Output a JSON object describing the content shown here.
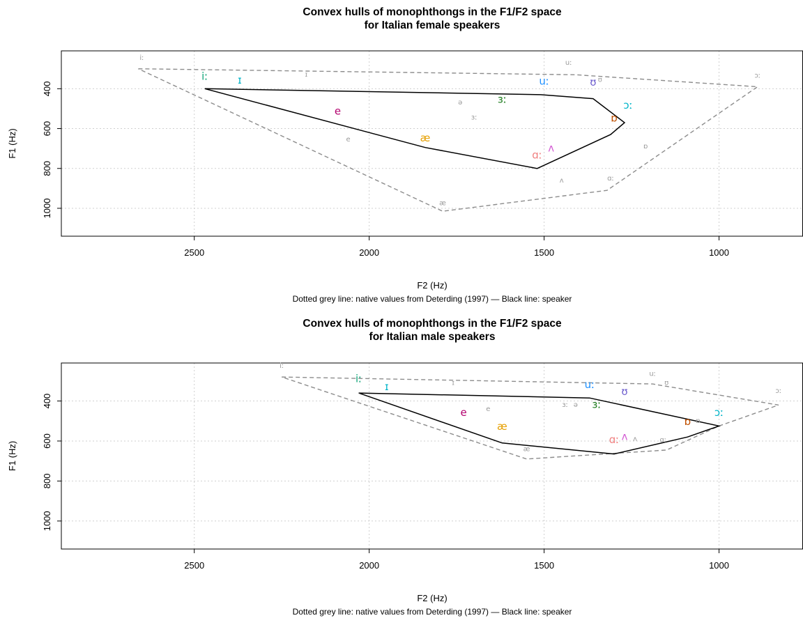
{
  "chart_data": [
    {
      "type": "scatter",
      "title": [
        "Convex hulls of monophthongs in the F1/F2 space",
        "for Italian female speakers"
      ],
      "xlabel": "F2 (Hz)",
      "ylabel": "F1 (Hz)",
      "caption": "Dotted grey line: native values from Deterding (1997) — Black line: speaker",
      "xlim": [
        2880,
        760
      ],
      "ylim": [
        1140,
        210
      ],
      "xticks": [
        2500,
        2000,
        1500,
        1000
      ],
      "yticks": [
        400,
        600,
        800,
        1000
      ],
      "grid": true,
      "series": [
        {
          "points": [
            {
              "label": "iː",
              "x": 2470,
              "y": 355,
              "color": "#11a579"
            },
            {
              "label": "ɪ",
              "x": 2370,
              "y": 375,
              "color": "#00b4c8"
            },
            {
              "label": "e",
              "x": 2090,
              "y": 530,
              "color": "#b3006e"
            },
            {
              "label": "æ",
              "x": 1840,
              "y": 665,
              "color": "#e69f00"
            },
            {
              "label": "ɑː",
              "x": 1520,
              "y": 750,
              "color": "#f08080"
            },
            {
              "label": "ʌ",
              "x": 1480,
              "y": 715,
              "color": "#d45fd4"
            },
            {
              "label": "ɜː",
              "x": 1620,
              "y": 470,
              "color": "#1b7a1b"
            },
            {
              "label": "uː",
              "x": 1500,
              "y": 380,
              "color": "#1e90ff"
            },
            {
              "label": "ʊ",
              "x": 1360,
              "y": 385,
              "color": "#6a5acd"
            },
            {
              "label": "ɔː",
              "x": 1260,
              "y": 500,
              "color": "#00b4c8"
            },
            {
              "label": "ɒ",
              "x": 1300,
              "y": 565,
              "color": "#c05000"
            }
          ],
          "hull": [
            [
              2470,
              400
            ],
            [
              1510,
              430
            ],
            [
              1360,
              450
            ],
            [
              1270,
              570
            ],
            [
              1310,
              630
            ],
            [
              1520,
              800
            ],
            [
              1840,
              695
            ],
            [
              2470,
              400
            ]
          ]
        },
        {
          "points": [
            {
              "label": "iː",
              "x": 2650,
              "y": 255
            },
            {
              "label": "ɪ",
              "x": 2180,
              "y": 340
            },
            {
              "label": "e",
              "x": 2060,
              "y": 665
            },
            {
              "label": "æ",
              "x": 1790,
              "y": 985
            },
            {
              "label": "ɑː",
              "x": 1310,
              "y": 860
            },
            {
              "label": "ʌ",
              "x": 1450,
              "y": 870
            },
            {
              "label": "ɜː",
              "x": 1700,
              "y": 555
            },
            {
              "label": "ə",
              "x": 1740,
              "y": 480
            },
            {
              "label": "uː",
              "x": 1430,
              "y": 280
            },
            {
              "label": "ʊ",
              "x": 1340,
              "y": 365
            },
            {
              "label": "ɔː",
              "x": 890,
              "y": 345
            },
            {
              "label": "ɒ",
              "x": 1210,
              "y": 700
            }
          ],
          "hull": [
            [
              2660,
              300
            ],
            [
              1410,
              330
            ],
            [
              890,
              390
            ],
            [
              1320,
              910
            ],
            [
              1790,
              1015
            ],
            [
              2660,
              300
            ]
          ]
        }
      ]
    },
    {
      "type": "scatter",
      "title": [
        "Convex hulls of monophthongs in the F1/F2 space",
        "for Italian male speakers"
      ],
      "xlabel": "F2 (Hz)",
      "ylabel": "F1 (Hz)",
      "caption": "Dotted grey line: native values from Deterding (1997) — Black line: speaker",
      "xlim": [
        2880,
        760
      ],
      "ylim": [
        1140,
        210
      ],
      "xticks": [
        2500,
        2000,
        1500,
        1000
      ],
      "yticks": [
        400,
        600,
        800,
        1000
      ],
      "grid": true,
      "series": [
        {
          "points": [
            {
              "label": "iː",
              "x": 2030,
              "y": 305,
              "color": "#11a579"
            },
            {
              "label": "ɪ",
              "x": 1950,
              "y": 345,
              "color": "#00b4c8"
            },
            {
              "label": "e",
              "x": 1730,
              "y": 475,
              "color": "#b3006e"
            },
            {
              "label": "æ",
              "x": 1620,
              "y": 545,
              "color": "#e69f00"
            },
            {
              "label": "ɑː",
              "x": 1300,
              "y": 610,
              "color": "#f08080"
            },
            {
              "label": "ʌ",
              "x": 1270,
              "y": 595,
              "color": "#d45fd4"
            },
            {
              "label": "ɜː",
              "x": 1350,
              "y": 435,
              "color": "#1b7a1b"
            },
            {
              "label": "uː",
              "x": 1370,
              "y": 335,
              "color": "#1e90ff"
            },
            {
              "label": "ʊ",
              "x": 1270,
              "y": 370,
              "color": "#6a5acd"
            },
            {
              "label": "ɔː",
              "x": 1000,
              "y": 475,
              "color": "#00b4c8"
            },
            {
              "label": "ɒ",
              "x": 1090,
              "y": 520,
              "color": "#c05000"
            }
          ],
          "hull": [
            [
              2030,
              360
            ],
            [
              1370,
              385
            ],
            [
              1000,
              525
            ],
            [
              1090,
              580
            ],
            [
              1300,
              665
            ],
            [
              1620,
              610
            ],
            [
              2030,
              360
            ]
          ]
        },
        {
          "points": [
            {
              "label": "iː",
              "x": 2250,
              "y": 235
            },
            {
              "label": "ɪ",
              "x": 1760,
              "y": 320
            },
            {
              "label": "e",
              "x": 1660,
              "y": 450
            },
            {
              "label": "æ",
              "x": 1550,
              "y": 650
            },
            {
              "label": "ɑː",
              "x": 1160,
              "y": 605
            },
            {
              "label": "ʌ",
              "x": 1240,
              "y": 600
            },
            {
              "label": "ɜː",
              "x": 1440,
              "y": 430
            },
            {
              "label": "ə",
              "x": 1410,
              "y": 430
            },
            {
              "label": "uː",
              "x": 1190,
              "y": 275
            },
            {
              "label": "ʊ",
              "x": 1150,
              "y": 320
            },
            {
              "label": "ɔː",
              "x": 830,
              "y": 360
            },
            {
              "label": "ɒ",
              "x": 1060,
              "y": 510
            }
          ],
          "hull": [
            [
              2250,
              280
            ],
            [
              1190,
              315
            ],
            [
              830,
              420
            ],
            [
              1000,
              525
            ],
            [
              1150,
              645
            ],
            [
              1550,
              690
            ],
            [
              2250,
              280
            ]
          ]
        }
      ]
    }
  ]
}
